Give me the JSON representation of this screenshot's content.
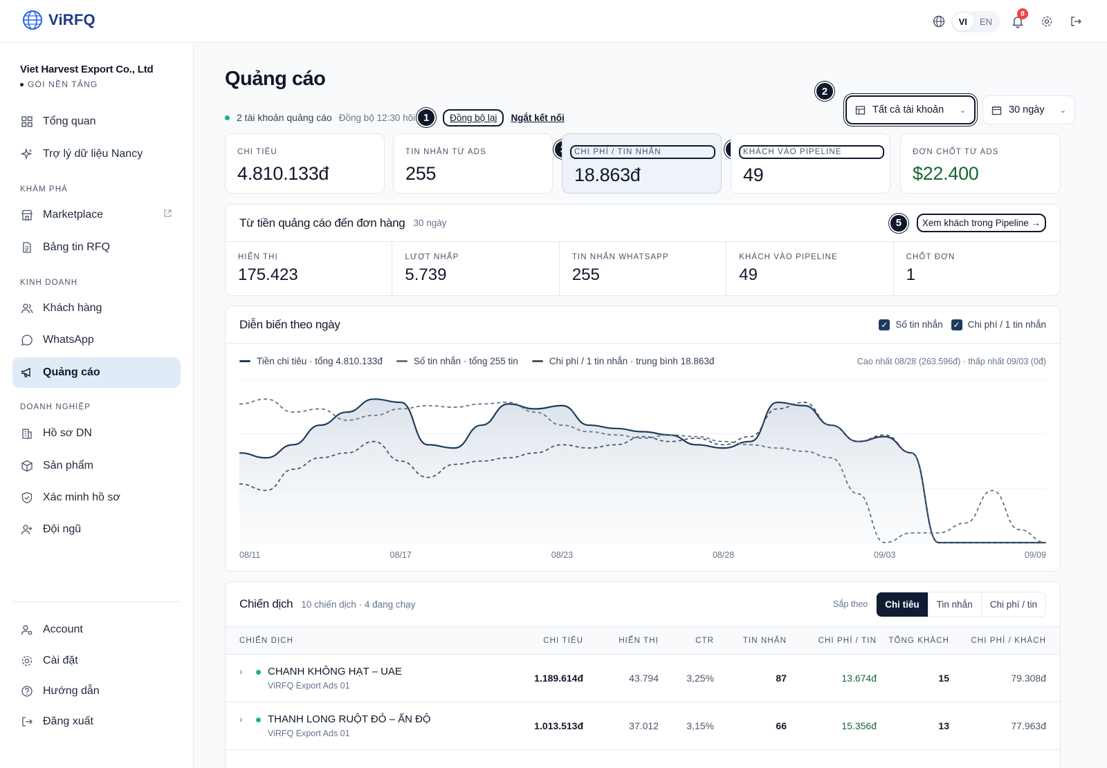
{
  "app": {
    "logo": "ViRFQ"
  },
  "topbar": {
    "lang_vi": "VI",
    "lang_en": "EN",
    "notif_count": "8"
  },
  "sidebar": {
    "company_name": "Viet Harvest Export Co., Ltd",
    "plan": "GÓI NỀN TẢNG",
    "items": [
      {
        "label": "Tổng quan",
        "icon": "grid-icon"
      },
      {
        "label": "Trợ lý dữ liệu Nancy",
        "icon": "sparkles-icon"
      },
      {
        "label": "Marketplace",
        "icon": "store-icon"
      },
      {
        "label": "Bảng tin RFQ",
        "icon": "document-icon"
      },
      {
        "label": "Khách hàng",
        "icon": "users-icon"
      },
      {
        "label": "WhatsApp",
        "icon": "chat-icon"
      },
      {
        "label": "Quảng cáo",
        "icon": "megaphone-icon"
      },
      {
        "label": "Hồ sơ DN",
        "icon": "building-icon"
      },
      {
        "label": "Sản phẩm",
        "icon": "box-icon"
      },
      {
        "label": "Xác minh hồ sơ",
        "icon": "shield-check-icon"
      },
      {
        "label": "Đội ngũ",
        "icon": "user-plus-icon"
      }
    ],
    "sections": {
      "explore": "KHÁM PHÁ",
      "business": "KINH DOANH",
      "enterprise": "DOANH NGHIỆP"
    },
    "bottom": [
      {
        "label": "Account",
        "icon": "user-cog-icon"
      },
      {
        "label": "Cài đặt",
        "icon": "gear-icon"
      },
      {
        "label": "Hướng dẫn",
        "icon": "help-icon"
      },
      {
        "label": "Đăng xuất",
        "icon": "logout-icon"
      }
    ]
  },
  "header": {
    "title": "Quảng cáo",
    "accounts_status": "2 tài khoản quảng cáo",
    "sync_time": "Đồng bộ 12:30 hôi",
    "resync": "Đồng bộ lại",
    "disconnect": "Ngắt kết nối",
    "account_select": "Tất cả tài khoản",
    "range_select": "30 ngày",
    "markers": [
      "1",
      "2",
      "3",
      "4",
      "5"
    ]
  },
  "kpis": [
    {
      "label": "CHI TIÊU",
      "value": "4.810.133đ"
    },
    {
      "label": "TIN NHẮN TỪ ADS",
      "value": "255"
    },
    {
      "label": "CHI PHÍ / TIN NHẮN",
      "value": "18.863đ"
    },
    {
      "label": "KHÁCH VÀO PIPELINE",
      "value": "49"
    },
    {
      "label": "ĐƠN CHỐT TỪ ADS",
      "value": "$22.400"
    }
  ],
  "funnel": {
    "title": "Từ tiền quảng cáo đến đơn hàng",
    "period": "30 ngày",
    "cta": "Xem khách trong Pipeline →",
    "cells": [
      {
        "label": "HIỂN THỊ",
        "value": "175.423"
      },
      {
        "label": "LƯỢT NHẤP",
        "value": "5.739"
      },
      {
        "label": "TIN NHẮN WHATSAPP",
        "value": "255"
      },
      {
        "label": "KHÁCH VÀO PIPELINE",
        "value": "49"
      },
      {
        "label": "CHỐT ĐƠN",
        "value": "1"
      }
    ]
  },
  "trend": {
    "title": "Diễn biến theo ngày",
    "check_messages": "Số tin nhắn",
    "check_cpm": "Chi phí / 1 tin nhắn",
    "note": "Cao nhất 08/28 (263.596đ) · thấp nhất 09/03 (0đ)"
  },
  "chart_data": {
    "type": "line",
    "x_tick_labels": [
      "08/11",
      "08/17",
      "08/23",
      "08/28",
      "09/03",
      "09/09"
    ],
    "series": [
      {
        "name": "Tiền chi tiêu · tổng 4.810.133đ",
        "color": "#1e3a5f",
        "style": "solid-filled",
        "values": [
          0.55,
          0.52,
          0.6,
          0.72,
          0.8,
          0.88,
          0.86,
          0.6,
          0.58,
          0.72,
          0.85,
          0.82,
          0.84,
          0.72,
          0.7,
          0.68,
          0.66,
          0.6,
          0.58,
          0.62,
          0.86,
          0.84,
          0.72,
          0.62,
          0.65,
          0.55,
          0.0,
          0.0,
          0.0,
          0.0,
          0.0
        ]
      },
      {
        "name": "Số tin nhắn · tổng 255 tin",
        "color": "#64748b",
        "style": "dashed",
        "values": [
          0.85,
          0.88,
          0.8,
          0.82,
          0.75,
          0.78,
          0.82,
          0.84,
          0.83,
          0.85,
          0.86,
          0.8,
          0.72,
          0.68,
          0.66,
          0.64,
          0.66,
          0.65,
          0.62,
          0.6,
          0.58,
          0.56,
          0.52,
          0.3,
          0.0,
          0.06,
          0.06,
          0.12,
          0.32,
          0.08,
          0.0
        ]
      },
      {
        "name": "Chi phí / 1 tin nhắn · trung bình 18.863đ",
        "color": "#475569",
        "style": "dashed",
        "values": [
          0.36,
          0.32,
          0.45,
          0.52,
          0.55,
          0.62,
          0.5,
          0.4,
          0.48,
          0.5,
          0.52,
          0.55,
          0.6,
          0.58,
          0.6,
          0.65,
          0.62,
          0.64,
          0.6,
          0.65,
          0.82,
          0.86,
          0.72,
          0.62,
          0.66,
          0.55,
          0.0,
          0.0,
          0.0,
          0.0,
          0.0
        ]
      }
    ],
    "grid": true
  },
  "campaigns": {
    "title": "Chiến dịch",
    "summary": "10 chiến dịch · 4 đang chạy",
    "sort_label": "Sắp theo",
    "sort_options": [
      "Chi tiêu",
      "Tin nhắn",
      "Chi phí / tin"
    ],
    "columns": [
      "CHIẾN DỊCH",
      "CHI TIÊU",
      "HIỂN THỊ",
      "CTR",
      "TIN NHẮN",
      "CHI PHÍ / TIN",
      "TỔNG KHÁCH",
      "CHI PHÍ / KHÁCH"
    ],
    "rows": [
      {
        "name": "CHANH KHÔNG HẠT – UAE",
        "account": "ViRFQ Export Ads 01",
        "spend": "1.189.614đ",
        "impr": "43.794",
        "ctr": "3,25%",
        "msgs": "87",
        "cpm": "13.674đ",
        "leads": "15",
        "cpl": "79.308đ"
      },
      {
        "name": "THANH LONG RUỘT ĐỎ – ẤN ĐỘ",
        "account": "ViRFQ Export Ads 01",
        "spend": "1.013.513đ",
        "impr": "37.012",
        "ctr": "3,15%",
        "msgs": "66",
        "cpm": "15.356đ",
        "leads": "13",
        "cpl": "77.963đ"
      }
    ]
  }
}
